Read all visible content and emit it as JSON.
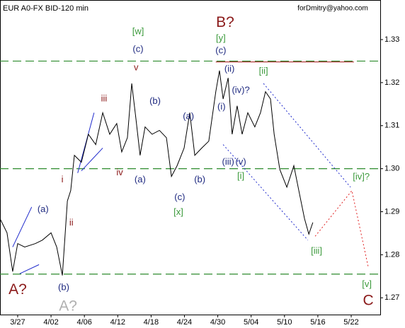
{
  "chart_data": {
    "type": "line",
    "title": "EUR A0-FX BID-120 min",
    "subtitle": "forDmitry@yahoo.com",
    "color": "#000000",
    "xlim": [
      -0.53,
      10.87
    ],
    "ylim": [
      1.2661,
      1.3392
    ],
    "xticks": [
      {
        "value": 0,
        "label": "3/27"
      },
      {
        "value": 1,
        "label": "4/02"
      },
      {
        "value": 2,
        "label": "4/06"
      },
      {
        "value": 3,
        "label": "4/12"
      },
      {
        "value": 4,
        "label": "4/18"
      },
      {
        "value": 5,
        "label": "4/24"
      },
      {
        "value": 6,
        "label": "4/30"
      },
      {
        "value": 7,
        "label": "5/04"
      },
      {
        "value": 8,
        "label": "5/10"
      },
      {
        "value": 9,
        "label": "5/16"
      },
      {
        "value": 10,
        "label": "5/22"
      }
    ],
    "yticks": [
      1.33,
      1.32,
      1.31,
      {
        "value": 1.3,
        "label": "1.30"
      },
      1.29,
      1.28,
      1.27
    ],
    "x": [
      -0.53,
      -0.32,
      -0.15,
      0,
      0.21,
      0.53,
      0.74,
      1.0,
      1.17,
      1.34,
      1.49,
      1.59,
      1.7,
      1.91,
      2.12,
      2.34,
      2.55,
      2.76,
      2.97,
      3.12,
      3.29,
      3.42,
      3.55,
      3.67,
      3.82,
      4.03,
      4.25,
      4.46,
      4.61,
      4.78,
      4.99,
      5.16,
      5.31,
      5.52,
      5.73,
      5.94,
      6.05,
      6.16,
      6.31,
      6.43,
      6.58,
      6.73,
      6.9,
      7.11,
      7.28,
      7.43,
      7.58,
      7.69,
      7.86,
      8.07,
      8.28,
      8.43,
      8.6,
      8.73,
      8.85
    ],
    "values": [
      1.2884,
      1.2851,
      1.2761,
      1.2826,
      1.2818,
      1.2826,
      1.2834,
      1.2851,
      1.2818,
      1.2752,
      1.2925,
      1.2949,
      1.3031,
      1.3015,
      1.308,
      1.3056,
      1.313,
      1.308,
      1.3105,
      1.3039,
      1.3072,
      1.3198,
      1.3113,
      1.3031,
      1.3097,
      1.308,
      1.3089,
      1.3072,
      1.2982,
      1.3007,
      1.3048,
      1.313,
      1.3031,
      1.3048,
      1.3064,
      1.3179,
      1.3228,
      1.3162,
      1.3211,
      1.308,
      1.3146,
      1.308,
      1.313,
      1.3097,
      1.313,
      1.3179,
      1.3162,
      1.308,
      1.2998,
      1.2957,
      1.3007,
      1.2949,
      1.2884,
      1.2848,
      1.2875
    ],
    "levels": {
      "color": "#2e8b2e",
      "values": [
        1.325,
        1.3,
        1.2755
      ]
    },
    "trendlines": [
      {
        "color": "#1f2acc",
        "style": "solid",
        "x": [
          -0.15,
          0.42
        ],
        "y": [
          1.2818,
          1.2911
        ]
      },
      {
        "color": "#1f2acc",
        "style": "solid",
        "x": [
          0.06,
          0.64
        ],
        "y": [
          1.2756,
          1.2777
        ]
      },
      {
        "color": "#1f2acc",
        "style": "solid",
        "x": [
          1.8,
          2.29
        ],
        "y": [
          1.299,
          1.313
        ]
      },
      {
        "color": "#1f2acc",
        "style": "solid",
        "x": [
          1.91,
          2.55
        ],
        "y": [
          1.2995,
          1.3048
        ]
      },
      {
        "color": "#1f2acc",
        "style": "dotted",
        "x": [
          6.16,
          8.7
        ],
        "y": [
          1.3056,
          1.2834
        ]
      },
      {
        "color": "#1f2acc",
        "style": "dotted",
        "x": [
          7.37,
          9.98
        ],
        "y": [
          1.3198,
          1.2957
        ]
      },
      {
        "color": "#e02020",
        "style": "dotted",
        "x": [
          8.92,
          10.02,
          10.51
        ],
        "y": [
          1.2843,
          1.2949,
          1.2772
        ]
      },
      {
        "color": "#a01010",
        "style": "solid",
        "x": [
          5.94,
          10.08
        ],
        "y": [
          1.3248,
          1.3248
        ]
      }
    ],
    "wave_labels": [
      {
        "text": "[w]",
        "x": 3.61,
        "y": 1.3318,
        "color": "#3c9a3c"
      },
      {
        "text": "(c)",
        "x": 3.61,
        "y": 1.3277,
        "color": "#1f2a80"
      },
      {
        "text": "v",
        "x": 3.55,
        "y": 1.3234,
        "color": "#8b1a1a"
      },
      {
        "text": "[y]",
        "x": 6.09,
        "y": 1.3302,
        "color": "#3c9a3c"
      },
      {
        "text": "(c)",
        "x": 6.09,
        "y": 1.3274,
        "color": "#1f2a80"
      },
      {
        "text": "[ii]",
        "x": 7.37,
        "y": 1.3226,
        "color": "#3c9a3c"
      },
      {
        "text": "(ii)",
        "x": 6.35,
        "y": 1.3231,
        "color": "#1f2a80"
      },
      {
        "text": "(iv)?",
        "x": 6.69,
        "y": 1.3182,
        "color": "#1f2a80"
      },
      {
        "text": "(i)",
        "x": 6.11,
        "y": 1.3143,
        "color": "#1f2a80"
      },
      {
        "text": "iii",
        "x": 2.59,
        "y": 1.3162,
        "color": "#8b1a1a"
      },
      {
        "text": "(b)",
        "x": 4.12,
        "y": 1.3156,
        "color": "#1f2a80"
      },
      {
        "text": "(a)",
        "x": 5.12,
        "y": 1.3121,
        "color": "#1f2a80"
      },
      {
        "text": "iv",
        "x": 3.06,
        "y": 1.299,
        "color": "#8b1a1a"
      },
      {
        "text": "(a)",
        "x": 3.67,
        "y": 1.2974,
        "color": "#1f2a80"
      },
      {
        "text": "(c)",
        "x": 4.86,
        "y": 1.2933,
        "color": "#1f2a80"
      },
      {
        "text": "(b)",
        "x": 5.46,
        "y": 1.2974,
        "color": "#1f2a80"
      },
      {
        "text": "[x]",
        "x": 4.82,
        "y": 1.2898,
        "color": "#3c9a3c"
      },
      {
        "text": "(iii)",
        "x": 6.31,
        "y": 1.3015,
        "color": "#1f2a80"
      },
      {
        "text": "(v)",
        "x": 6.69,
        "y": 1.3015,
        "color": "#1f2a80"
      },
      {
        "text": "[i]",
        "x": 6.69,
        "y": 1.2982,
        "color": "#3c9a3c"
      },
      {
        "text": "i",
        "x": 1.34,
        "y": 1.2974,
        "color": "#8b1a1a"
      },
      {
        "text": "(a)",
        "x": 0.76,
        "y": 1.2905,
        "color": "#1f2a80"
      },
      {
        "text": "ii",
        "x": 1.61,
        "y": 1.2874,
        "color": "#8b1a1a"
      },
      {
        "text": "[iii]",
        "x": 8.96,
        "y": 1.2808,
        "color": "#3c9a3c"
      },
      {
        "text": "[iv]?",
        "x": 10.3,
        "y": 1.298,
        "color": "#3c9a3c"
      },
      {
        "text": "[v]",
        "x": 10.47,
        "y": 1.2731,
        "color": "#3c9a3c"
      },
      {
        "text": "(b)",
        "x": 1.38,
        "y": 1.2723,
        "color": "#1f2a80"
      }
    ],
    "major_wave_labels": [
      {
        "text": "B?",
        "x": 6.22,
        "y": 1.3339,
        "color": "#8b1a1a"
      },
      {
        "text": "C",
        "x": 10.51,
        "y": 1.2692,
        "color": "#8b1a1a"
      },
      {
        "text": "A?",
        "x": 0,
        "y": 1.2718,
        "color": "#8b1a1a"
      },
      {
        "text": "A?",
        "x": 1.51,
        "y": 1.2679,
        "color": "#b0b0b0"
      }
    ]
  }
}
